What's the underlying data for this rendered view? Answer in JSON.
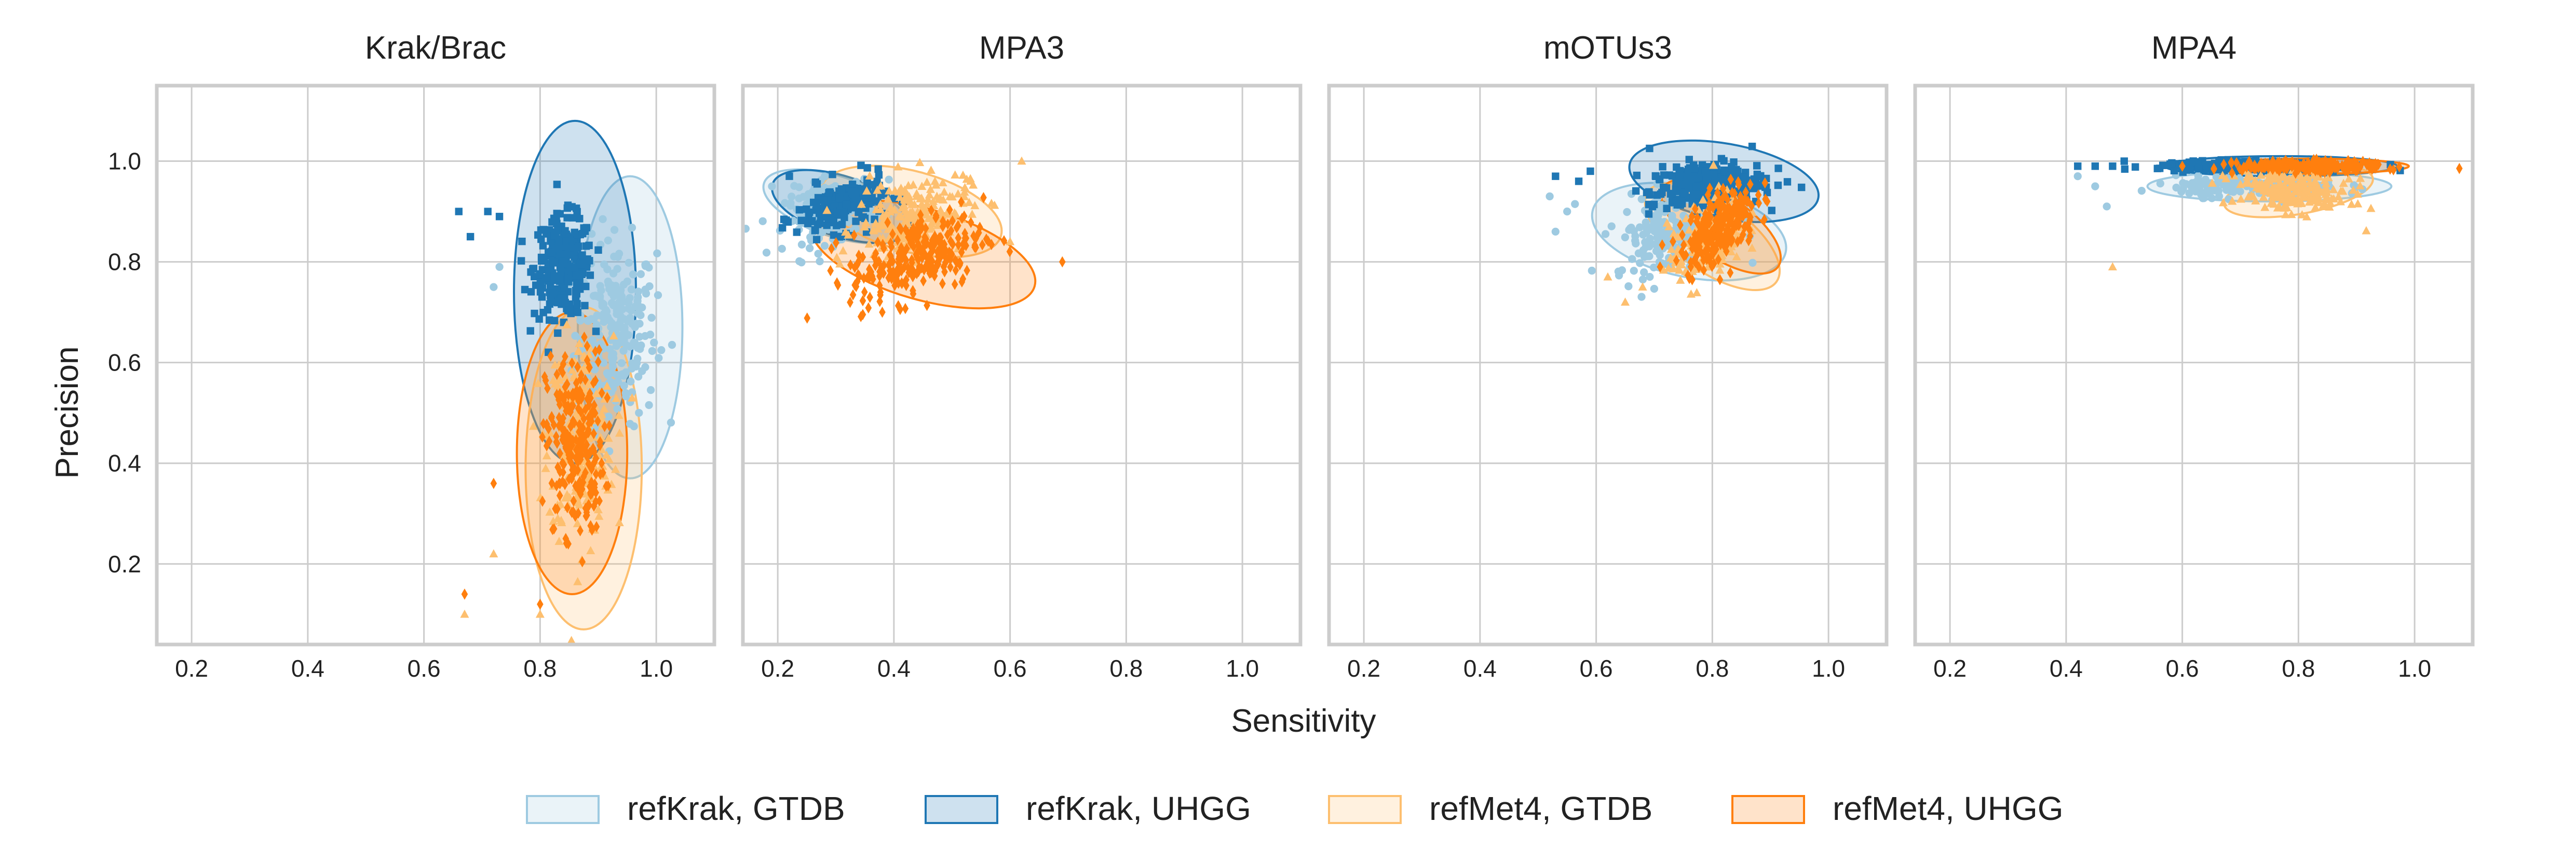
{
  "chart_data": {
    "type": "scatter",
    "xlabel": "Sensitivity",
    "ylabel": "Precision",
    "xlim": [
      0.14,
      1.1
    ],
    "ylim": [
      0.04,
      1.15
    ],
    "xticks": [
      "0.2",
      "0.4",
      "0.6",
      "0.8",
      "1.0"
    ],
    "yticks": [
      "0.2",
      "0.4",
      "0.6",
      "0.8",
      "1.0"
    ],
    "grid": true,
    "legend_position": "bottom-center",
    "series": [
      {
        "name": "refKrak, GTDB",
        "key": "krak_gtdb",
        "color": "#9ecae1",
        "fill": "rgba(158,202,225,0.22)",
        "marker": "circle"
      },
      {
        "name": "refKrak, UHGG",
        "key": "krak_uhgg",
        "color": "#1f77b4",
        "fill": "rgba(31,119,180,0.22)",
        "marker": "square"
      },
      {
        "name": "refMet4, GTDB",
        "key": "met_gtdb",
        "color": "#fdbf6f",
        "fill": "rgba(253,191,111,0.22)",
        "marker": "triangle"
      },
      {
        "name": "refMet4, UHGG",
        "key": "met_uhgg",
        "color": "#ff7f0e",
        "fill": "rgba(255,127,14,0.22)",
        "marker": "diamond"
      }
    ],
    "panels": [
      {
        "title": "Krak/Brac",
        "groups": {
          "krak_gtdb": {
            "cx": 0.93,
            "cy": 0.66,
            "sx": 0.035,
            "sy": 0.09,
            "n": 240,
            "rot": 0,
            "ellipse": {
              "cx": 0.955,
              "cy": 0.67,
              "w": 0.18,
              "h": 0.6,
              "rot": 88
            },
            "outliers": [
              [
                0.73,
                0.79
              ],
              [
                0.72,
                0.75
              ]
            ]
          },
          "krak_uhgg": {
            "cx": 0.84,
            "cy": 0.79,
            "sx": 0.025,
            "sy": 0.05,
            "n": 260,
            "rot": 0,
            "ellipse": {
              "cx": 0.86,
              "cy": 0.74,
              "w": 0.21,
              "h": 0.68,
              "rot": 94
            },
            "outliers": [
              [
                0.66,
                0.9
              ],
              [
                0.68,
                0.85
              ],
              [
                0.71,
                0.9
              ],
              [
                0.73,
                0.89
              ]
            ]
          },
          "met_gtdb": {
            "cx": 0.87,
            "cy": 0.45,
            "sx": 0.028,
            "sy": 0.1,
            "n": 220,
            "rot": 0,
            "ellipse": {
              "cx": 0.875,
              "cy": 0.39,
              "w": 0.2,
              "h": 0.64,
              "rot": 90
            },
            "outliers": [
              [
                0.72,
                0.22
              ],
              [
                0.67,
                0.1
              ],
              [
                0.8,
                0.1
              ]
            ]
          },
          "met_uhgg": {
            "cx": 0.86,
            "cy": 0.44,
            "sx": 0.025,
            "sy": 0.09,
            "n": 240,
            "rot": 0,
            "ellipse": {
              "cx": 0.855,
              "cy": 0.42,
              "w": 0.19,
              "h": 0.56,
              "rot": 90
            },
            "outliers": [
              [
                0.72,
                0.36
              ],
              [
                0.67,
                0.14
              ],
              [
                0.8,
                0.12
              ]
            ]
          }
        }
      },
      {
        "title": "MPA3",
        "groups": {
          "krak_gtdb": {
            "cx": 0.29,
            "cy": 0.9,
            "sx": 0.04,
            "sy": 0.03,
            "n": 180,
            "rot": -15,
            "ellipse": {
              "cx": 0.3,
              "cy": 0.91,
              "w": 0.26,
              "h": 0.12,
              "rot": -18
            },
            "outliers": [
              [
                0.19,
                0.95
              ]
            ]
          },
          "krak_uhgg": {
            "cx": 0.31,
            "cy": 0.91,
            "sx": 0.04,
            "sy": 0.025,
            "n": 180,
            "rot": -15,
            "ellipse": {
              "cx": 0.31,
              "cy": 0.91,
              "w": 0.25,
              "h": 0.12,
              "rot": -18
            },
            "outliers": [
              [
                0.22,
                0.97
              ]
            ]
          },
          "met_gtdb": {
            "cx": 0.43,
            "cy": 0.89,
            "sx": 0.05,
            "sy": 0.04,
            "n": 200,
            "rot": -15,
            "ellipse": {
              "cx": 0.43,
              "cy": 0.9,
              "w": 0.32,
              "h": 0.16,
              "rot": -15
            },
            "outliers": [
              [
                0.62,
                1.0
              ],
              [
                0.6,
                0.84
              ]
            ]
          },
          "met_uhgg": {
            "cx": 0.44,
            "cy": 0.81,
            "sx": 0.06,
            "sy": 0.04,
            "n": 260,
            "rot": -18,
            "ellipse": {
              "cx": 0.45,
              "cy": 0.815,
              "w": 0.4,
              "h": 0.18,
              "rot": -16
            },
            "outliers": [
              [
                0.69,
                0.8
              ],
              [
                0.38,
                0.7
              ]
            ]
          }
        }
      },
      {
        "title": "mOTUs3",
        "groups": {
          "krak_gtdb": {
            "cx": 0.73,
            "cy": 0.86,
            "sx": 0.05,
            "sy": 0.04,
            "n": 200,
            "rot": -10,
            "ellipse": {
              "cx": 0.76,
              "cy": 0.86,
              "w": 0.34,
              "h": 0.18,
              "rot": -12
            },
            "outliers": [
              [
                0.52,
                0.93
              ],
              [
                0.55,
                0.9
              ],
              [
                0.53,
                0.86
              ]
            ]
          },
          "krak_uhgg": {
            "cx": 0.79,
            "cy": 0.95,
            "sx": 0.05,
            "sy": 0.025,
            "n": 260,
            "rot": -8,
            "ellipse": {
              "cx": 0.82,
              "cy": 0.96,
              "w": 0.33,
              "h": 0.15,
              "rot": -10
            },
            "outliers": [
              [
                0.53,
                0.97
              ],
              [
                0.57,
                0.96
              ],
              [
                0.59,
                0.98
              ]
            ]
          },
          "met_gtdb": {
            "cx": 0.79,
            "cy": 0.84,
            "sx": 0.04,
            "sy": 0.04,
            "n": 160,
            "rot": -35,
            "ellipse": {
              "cx": 0.8,
              "cy": 0.85,
              "w": 0.27,
              "h": 0.14,
              "rot": -35
            },
            "outliers": [
              [
                0.62,
                0.77
              ],
              [
                0.65,
                0.72
              ],
              [
                0.68,
                0.75
              ]
            ]
          },
          "met_uhgg": {
            "cx": 0.81,
            "cy": 0.87,
            "sx": 0.04,
            "sy": 0.035,
            "n": 220,
            "rot": -35,
            "ellipse": {
              "cx": 0.815,
              "cy": 0.87,
              "w": 0.24,
              "h": 0.12,
              "rot": -35
            },
            "outliers": [
              [
                0.71,
                0.79
              ]
            ]
          }
        }
      },
      {
        "title": "MPA4",
        "groups": {
          "krak_gtdb": {
            "cx": 0.73,
            "cy": 0.95,
            "sx": 0.07,
            "sy": 0.01,
            "n": 180,
            "rot": 0,
            "ellipse": {
              "cx": 0.75,
              "cy": 0.95,
              "w": 0.42,
              "h": 0.06,
              "rot": 0
            },
            "outliers": [
              [
                0.42,
                0.97
              ],
              [
                0.45,
                0.95
              ],
              [
                0.47,
                0.91
              ]
            ]
          },
          "krak_uhgg": {
            "cx": 0.72,
            "cy": 0.99,
            "sx": 0.08,
            "sy": 0.005,
            "n": 260,
            "rot": 0,
            "ellipse": {
              "cx": 0.77,
              "cy": 0.99,
              "w": 0.4,
              "h": 0.04,
              "rot": 0
            },
            "outliers": [
              [
                0.42,
                0.99
              ],
              [
                0.45,
                0.99
              ],
              [
                0.48,
                0.99
              ],
              [
                0.5,
                1.0
              ]
            ]
          },
          "met_gtdb": {
            "cx": 0.79,
            "cy": 0.94,
            "sx": 0.05,
            "sy": 0.02,
            "n": 220,
            "rot": 8,
            "ellipse": {
              "cx": 0.8,
              "cy": 0.94,
              "w": 0.26,
              "h": 0.09,
              "rot": 10
            },
            "outliers": [
              [
                0.48,
                0.79
              ]
            ]
          },
          "met_uhgg": {
            "cx": 0.82,
            "cy": 0.99,
            "sx": 0.06,
            "sy": 0.005,
            "n": 260,
            "rot": 0,
            "ellipse": {
              "cx": 0.82,
              "cy": 0.99,
              "w": 0.34,
              "h": 0.03,
              "rot": 0
            },
            "outliers": [
              [
                0.6,
                0.99
              ]
            ]
          }
        }
      }
    ]
  }
}
